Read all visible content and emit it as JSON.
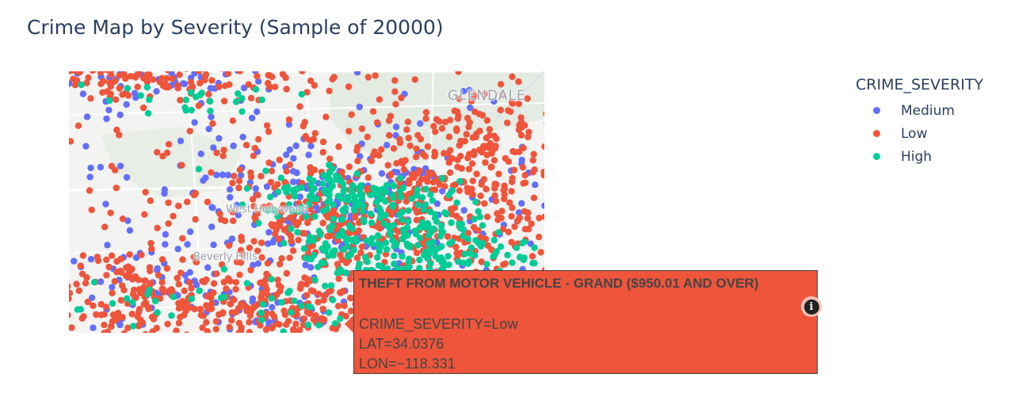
{
  "title": "Crime Map by Severity (Sample of 20000)",
  "map": {
    "place_labels": {
      "glendale": "GLENDALE",
      "west_hollywood": "West Hollywood",
      "beverly_hills": "Beverly Hills"
    },
    "basemap_colors": {
      "land": "#f3f3f1",
      "park": "#e3ebe3",
      "road": "#ffffff"
    }
  },
  "chart_data": {
    "type": "scatter",
    "title": "Crime Map by Severity (Sample of 20000)",
    "legend_title": "CRIME_SEVERITY",
    "legend_position": "right",
    "lon_range": [
      -118.43,
      -118.22
    ],
    "lat_range": [
      34.02,
      34.16
    ],
    "series": [
      {
        "name": "Medium",
        "color": "#636efa",
        "clusters": [
          {
            "lon": -118.4,
            "lat": 34.155,
            "spread_lon": 0.04,
            "spread_lat": 0.006,
            "n": 60
          },
          {
            "lon": -118.327,
            "lat": 34.09,
            "spread_lon": 0.035,
            "spread_lat": 0.018,
            "n": 120
          },
          {
            "lon": -118.28,
            "lat": 34.08,
            "spread_lon": 0.03,
            "spread_lat": 0.03,
            "n": 110
          },
          {
            "lon": -118.395,
            "lat": 34.04,
            "spread_lon": 0.028,
            "spread_lat": 0.014,
            "n": 70
          },
          {
            "lon": -118.34,
            "lat": 34.03,
            "spread_lon": 0.02,
            "spread_lat": 0.008,
            "n": 45
          },
          {
            "lon": -118.36,
            "lat": 34.115,
            "spread_lon": 0.06,
            "spread_lat": 0.035,
            "n": 60
          },
          {
            "lon": -118.23,
            "lat": 34.1,
            "spread_lon": 0.008,
            "spread_lat": 0.04,
            "n": 15
          }
        ]
      },
      {
        "name": "Low",
        "color": "#ef553b",
        "clusters": [
          {
            "lon": -118.4,
            "lat": 34.155,
            "spread_lon": 0.045,
            "spread_lat": 0.006,
            "n": 160
          },
          {
            "lon": -118.318,
            "lat": 34.08,
            "spread_lon": 0.035,
            "spread_lat": 0.025,
            "n": 280
          },
          {
            "lon": -118.265,
            "lat": 34.085,
            "spread_lon": 0.03,
            "spread_lat": 0.032,
            "n": 300
          },
          {
            "lon": -118.245,
            "lat": 34.125,
            "spread_lon": 0.012,
            "spread_lat": 0.018,
            "n": 70
          },
          {
            "lon": -118.4,
            "lat": 34.04,
            "spread_lon": 0.03,
            "spread_lat": 0.014,
            "n": 200
          },
          {
            "lon": -118.34,
            "lat": 34.03,
            "spread_lon": 0.022,
            "spread_lat": 0.009,
            "n": 140
          },
          {
            "lon": -118.36,
            "lat": 34.11,
            "spread_lon": 0.06,
            "spread_lat": 0.04,
            "n": 90
          },
          {
            "lon": -118.23,
            "lat": 34.09,
            "spread_lon": 0.008,
            "spread_lat": 0.04,
            "n": 40
          }
        ]
      },
      {
        "name": "High",
        "color": "#00cc96",
        "clusters": [
          {
            "lon": -118.305,
            "lat": 34.095,
            "spread_lon": 0.02,
            "spread_lat": 0.006,
            "n": 120
          },
          {
            "lon": -118.3,
            "lat": 34.07,
            "spread_lon": 0.022,
            "spread_lat": 0.012,
            "n": 140
          },
          {
            "lon": -118.27,
            "lat": 34.065,
            "spread_lon": 0.022,
            "spread_lat": 0.012,
            "n": 130
          },
          {
            "lon": -118.38,
            "lat": 34.145,
            "spread_lon": 0.03,
            "spread_lat": 0.006,
            "n": 25
          },
          {
            "lon": -118.395,
            "lat": 34.035,
            "spread_lon": 0.025,
            "spread_lat": 0.01,
            "n": 25
          },
          {
            "lon": -118.34,
            "lat": 34.03,
            "spread_lon": 0.015,
            "spread_lat": 0.007,
            "n": 15
          }
        ]
      }
    ],
    "hover": {
      "heading": "THEFT FROM MOTOR VEHICLE - GRAND ($950.01 AND OVER)",
      "severity": "CRIME_SEVERITY=Low",
      "lat": "LAT=34.0376",
      "lon": "LON=−118.331"
    }
  }
}
